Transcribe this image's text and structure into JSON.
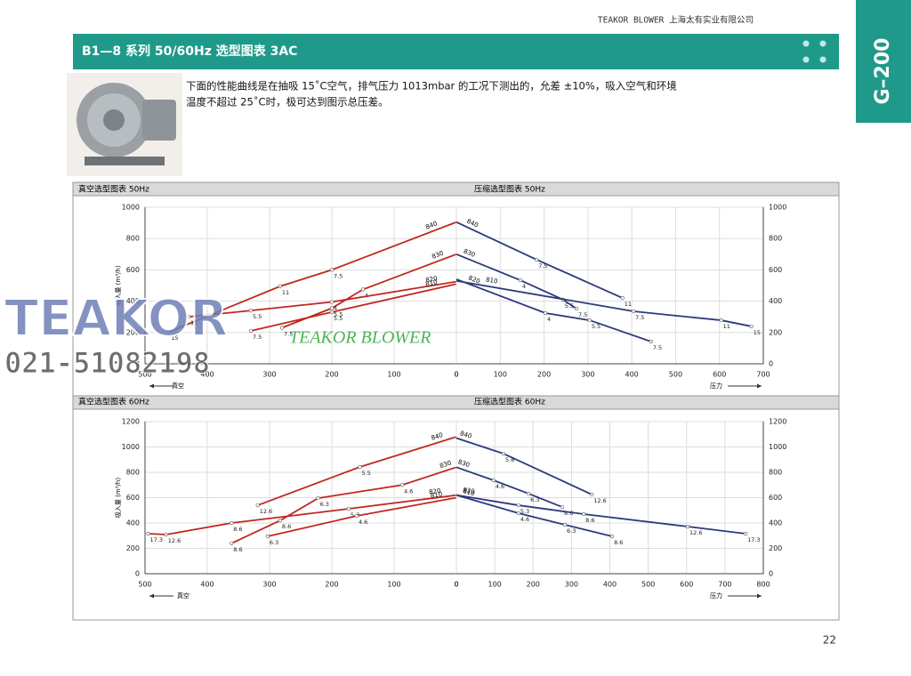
{
  "header": {
    "company": "TEAKOR BLOWER 上海太有实业有限公司",
    "title": "B1—8 系列 50/60Hz 选型图表 3AC",
    "code": "G–200"
  },
  "description": [
    "下面的性能曲线是在抽吸 15˚C空气，排气压力 1013mbar 的工况下测出的，允差 ±10%，吸入空气和环境",
    "温度不超过 25˚C时，极可达到图示总压差。"
  ],
  "watermark": {
    "brand": "TEAKOR",
    "phone": "021-51082198",
    "slogan": "TEAKOR BLOWER"
  },
  "page_number": "22",
  "chart_data": [
    {
      "type": "line",
      "title": "真空选型图表 50Hz",
      "x_label": "真空",
      "y_label": "吸入量 (m³/h)",
      "xlim": [
        500,
        0
      ],
      "xticks": [
        500,
        400,
        300,
        200,
        100,
        0
      ],
      "ylim": [
        0,
        1000
      ],
      "yticks": [
        0,
        200,
        400,
        600,
        800,
        1000
      ],
      "grid": true,
      "color": "#c0281e",
      "series": [
        {
          "name": "840",
          "x": [
            0,
            200,
            283,
            461
          ],
          "values": [
            905,
            600,
            495,
            205
          ],
          "point_labels": [
            null,
            "7.5",
            "11",
            "15"
          ]
        },
        {
          "name": "830",
          "x": [
            0,
            150,
            200,
            280
          ],
          "values": [
            700,
            475,
            355,
            230
          ],
          "point_labels": [
            null,
            "4",
            "5.5",
            "7.5"
          ]
        },
        {
          "name": "820",
          "x": [
            0,
            200,
            330,
            430
          ],
          "values": [
            525,
            395,
            340,
            300
          ],
          "point_labels": [
            null,
            "4",
            "5.5",
            "11"
          ]
        },
        {
          "name": "810",
          "x": [
            0,
            200,
            330
          ],
          "values": [
            510,
            330,
            210
          ],
          "point_labels": [
            null,
            "5.5",
            "7.5"
          ]
        }
      ]
    },
    {
      "type": "line",
      "title": "压缩选型图表 50Hz",
      "x_label": "压力",
      "xlim": [
        0,
        700
      ],
      "xticks": [
        0,
        100,
        200,
        300,
        400,
        500,
        600,
        700
      ],
      "ylim": [
        0,
        1000
      ],
      "yticks": [
        0,
        200,
        400,
        600,
        800,
        1000
      ],
      "grid": true,
      "color": "#2b3a7a",
      "series": [
        {
          "name": "840",
          "x": [
            0,
            183,
            379
          ],
          "values": [
            905,
            665,
            420
          ],
          "point_labels": [
            null,
            "7.5",
            "11"
          ]
        },
        {
          "name": "830",
          "x": [
            0,
            146,
            243,
            274
          ],
          "values": [
            700,
            534,
            410,
            352
          ],
          "point_labels": [
            null,
            "4",
            "5.5",
            "7.5"
          ]
        },
        {
          "name": "820",
          "x": [
            0,
            203,
            304,
            444
          ],
          "values": [
            540,
            324,
            278,
            142
          ],
          "point_labels": [
            null,
            "4",
            "5.5",
            "7.5"
          ]
        },
        {
          "name": "810",
          "x": [
            0,
            404,
            604,
            673
          ],
          "values": [
            530,
            335,
            278,
            239
          ],
          "point_labels": [
            null,
            "7.5",
            "11",
            "15"
          ]
        }
      ]
    },
    {
      "type": "line",
      "title": "真空选型图表 60Hz",
      "x_label": "真空",
      "y_label": "吸入量 (m³/h)",
      "xlim": [
        500,
        0
      ],
      "xticks": [
        500,
        400,
        300,
        200,
        100,
        0
      ],
      "ylim": [
        0,
        1200
      ],
      "yticks": [
        0,
        200,
        400,
        600,
        800,
        1000,
        1200
      ],
      "grid": true,
      "color": "#c0281e",
      "series": [
        {
          "name": "840",
          "x": [
            0,
            155,
            319
          ],
          "values": [
            1080,
            842,
            540
          ],
          "point_labels": [
            null,
            "5.5",
            "12.6"
          ]
        },
        {
          "name": "830",
          "x": [
            0,
            87,
            222,
            283,
            361
          ],
          "values": [
            840,
            700,
            596,
            420,
            240
          ],
          "point_labels": [
            null,
            "4.6",
            "6.3",
            "8.6",
            "8.6"
          ]
        },
        {
          "name": "820",
          "x": [
            0,
            173,
            361,
            466,
            495
          ],
          "values": [
            620,
            512,
            400,
            309,
            316
          ],
          "point_labels": [
            null,
            "5.3",
            "8.6",
            "12.6",
            "17.3"
          ]
        },
        {
          "name": "810",
          "x": [
            0,
            160,
            303
          ],
          "values": [
            600,
            456,
            295
          ],
          "point_labels": [
            null,
            "4.6",
            "6.3"
          ]
        }
      ]
    },
    {
      "type": "line",
      "title": "压缩选型图表 60Hz",
      "x_label": "压力",
      "xlim": [
        0,
        800
      ],
      "xticks": [
        0,
        100,
        200,
        300,
        400,
        500,
        600,
        700,
        800
      ],
      "ylim": [
        0,
        1200
      ],
      "yticks": [
        0,
        200,
        400,
        600,
        800,
        1000,
        1200
      ],
      "grid": true,
      "color": "#2b3a7a",
      "series": [
        {
          "name": "840",
          "x": [
            0,
            123,
            353
          ],
          "values": [
            1070,
            947,
            625
          ],
          "point_labels": [
            null,
            "5.6",
            "12.6"
          ]
        },
        {
          "name": "830",
          "x": [
            0,
            97,
            188,
            276
          ],
          "values": [
            840,
            737,
            632,
            526
          ],
          "point_labels": [
            null,
            "4.6",
            "6.3",
            "8.6"
          ]
        },
        {
          "name": "820",
          "x": [
            0,
            162,
            332,
            603,
            754
          ],
          "values": [
            620,
            540,
            470,
            372,
            316
          ],
          "point_labels": [
            null,
            "5.3",
            "8.6",
            "12.6",
            "17.3"
          ]
        },
        {
          "name": "810",
          "x": [
            0,
            162,
            283,
            406
          ],
          "values": [
            620,
            477,
            386,
            295
          ],
          "point_labels": [
            null,
            "4.6",
            "6.3",
            "8.6"
          ]
        }
      ]
    }
  ]
}
